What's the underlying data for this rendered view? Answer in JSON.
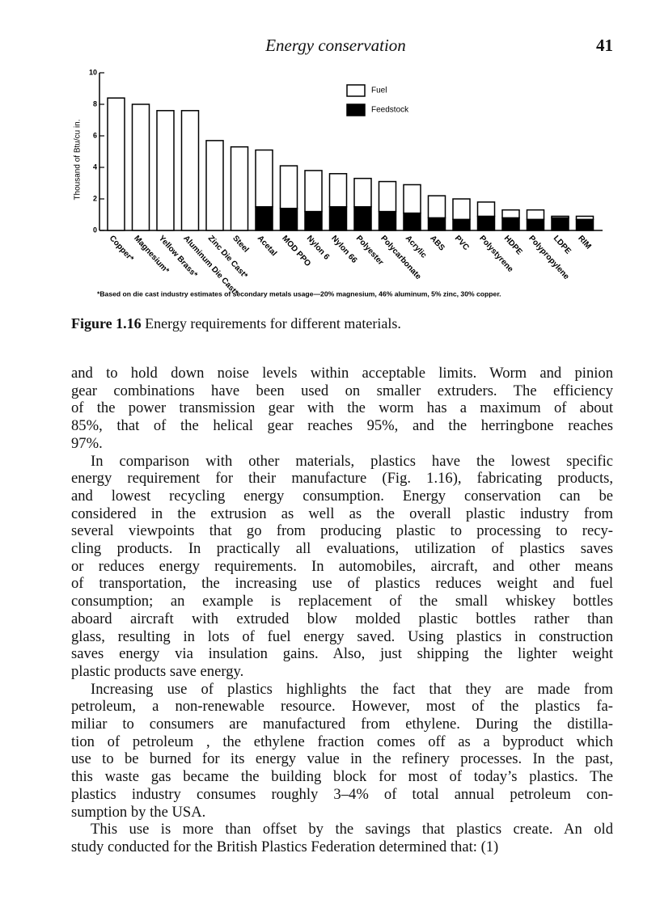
{
  "header": {
    "title": "Energy conservation",
    "page_number": "41"
  },
  "chart_data": {
    "type": "stacked_bar",
    "y_label": "Thousand of Btu/cu in.",
    "categories": [
      "Copper*",
      "Magnesium*",
      "Yellow Brass*",
      "Aluminum Die Cast*",
      "Zinc Die Cast*",
      "Steel",
      "Acetal",
      "MOD PPO",
      "Nylon 6",
      "Nylon 66",
      "Polyester",
      "Polycarbonate",
      "Acrylic",
      "ABS",
      "PVC",
      "Polystyrene",
      "HDPE",
      "Polypropylene",
      "LDPE",
      "RIM"
    ],
    "series": [
      {
        "name": "Feedstock",
        "color": "#000000",
        "values": [
          0,
          0,
          0,
          0,
          0,
          0,
          1.5,
          1.4,
          1.2,
          1.5,
          1.5,
          1.2,
          1.1,
          0.8,
          0.7,
          0.9,
          0.8,
          0.7,
          0.8,
          0.7
        ]
      },
      {
        "name": "Fuel",
        "color": "#ffffff",
        "values": [
          8.4,
          8.0,
          7.6,
          7.6,
          5.7,
          5.3,
          3.6,
          2.7,
          2.6,
          2.1,
          1.8,
          1.9,
          1.8,
          1.4,
          1.3,
          0.9,
          0.5,
          0.6,
          0.1,
          0.2
        ]
      }
    ],
    "ylim": [
      0,
      10
    ],
    "yticks": [
      0,
      2,
      4,
      6,
      8,
      10
    ],
    "legend": "upper right",
    "footnote": "*Based on die cast industry estimates of secondary metals usage—20% magnesium, 46% aluminum, 5% zinc, 30% copper."
  },
  "figure_caption": {
    "label": "Figure 1.16",
    "text": "Energy requirements for different materials."
  },
  "paragraphs": [
    {
      "lines": [
        "and to hold down noise levels within acceptable limits. Worm and pinion",
        "gear combinations have been used on smaller extruders. The efficiency",
        "of the power transmission gear with the worm has a maximum of about",
        "85%, that of the helical gear reaches 95%, and the herringbone reaches",
        "97%."
      ]
    },
    {
      "lines": [
        "In comparison with other materials, plastics have the lowest specific",
        "energy requirement for their manufacture (Fig. 1.16), fabricating products,",
        "and lowest recycling energy consumption. Energy conservation can be",
        "considered in the extrusion as well as the overall plastic industry from",
        "several viewpoints that go from producing plastic to processing to recy-",
        "cling products. In practically all evaluations, utilization of plastics saves",
        "or reduces energy requirements. In automobiles, aircraft, and other means",
        "of transportation, the increasing use of plastics reduces weight and fuel",
        "consumption; an example is replacement of the small whiskey bottles",
        "aboard aircraft with extruded blow molded plastic bottles rather than",
        "glass, resulting in lots of fuel energy saved. Using plastics in construction",
        "saves energy via insulation gains. Also, just shipping the lighter weight",
        "plastic products save energy."
      ]
    },
    {
      "lines": [
        "Increasing use of plastics highlights the fact that they are made from",
        "petroleum, a non-renewable resource. However, most of the plastics fa-",
        "miliar to consumers are manufactured from ethylene. During the distilla-",
        "tion of petroleum , the ethylene fraction comes off as a byproduct which",
        "use to be burned for its energy value in the refinery processes. In the past,",
        "this waste gas became the building block for most of today’s plastics. The",
        "plastics industry consumes roughly 3–4% of total annual petroleum con-",
        "sumption by the USA."
      ]
    },
    {
      "lines": [
        "This use is more than offset by the savings that plastics create. An old",
        "study conducted for the British Plastics Federation determined that: (1)"
      ]
    }
  ]
}
